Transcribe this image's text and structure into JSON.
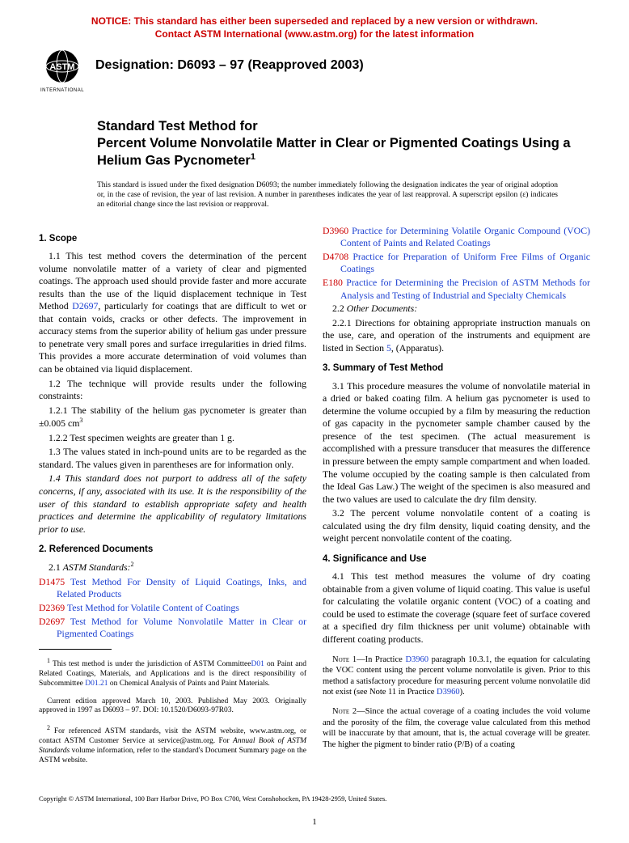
{
  "notice": {
    "line1": "NOTICE: This standard has either been superseded and replaced by a new version or withdrawn.",
    "line2": "Contact ASTM International (www.astm.org) for the latest information"
  },
  "logo_label": "INTERNATIONAL",
  "designation": "Designation: D6093 – 97 (Reapproved 2003)",
  "title": {
    "line1": "Standard Test Method for",
    "line2_a": "Percent Volume Nonvolatile Matter in Clear or Pigmented Coatings Using a Helium Gas Pycnometer",
    "sup": "1"
  },
  "issuance": "This standard is issued under the fixed designation D6093; the number immediately following the designation indicates the year of original adoption or, in the case of revision, the year of last revision. A number in parentheses indicates the year of last reapproval. A superscript epsilon (ε) indicates an editorial change since the last revision or reapproval.",
  "sec1_head": "1. Scope",
  "sec1_1a": "1.1 This test method covers the determination of the percent volume nonvolatile matter of a variety of clear and pigmented coatings. The approach used should provide faster and more accurate results than the use of the liquid displacement technique in Test Method ",
  "sec1_1_link": "D2697",
  "sec1_1b": ", particularly for coatings that are difficult to wet or that contain voids, cracks or other defects. The improvement in accuracy stems from the superior ability of helium gas under pressure to penetrate very small pores and surface irregularities in dried films. This provides a more accurate determination of void volumes than can be obtained via liquid displacement.",
  "sec1_2": "1.2 The technique will provide results under the following constraints:",
  "sec1_2_1": "1.2.1 The stability of the helium gas pycnometer is greater than ±0.005 cm",
  "sec1_2_1_sup": "3",
  "sec1_2_2": "1.2.2 Test specimen weights are greater than 1 g.",
  "sec1_3": "1.3 The values stated in inch-pound units are to be regarded as the standard. The values given in parentheses are for information only.",
  "sec1_4": "1.4 This standard does not purport to address all of the safety concerns, if any, associated with its use. It is the responsibility of the user of this standard to establish appropriate safety and health practices and determine the applicability of regulatory limitations prior to use.",
  "sec2_head": "2. Referenced Documents",
  "sec2_1": "2.1 ",
  "sec2_1_ital": "ASTM Standards:",
  "sec2_1_sup": "2",
  "refs_left": [
    {
      "code": "D1475",
      "text": " Test Method For Density of Liquid Coatings, Inks, and Related Products"
    },
    {
      "code": "D2369",
      "text": " Test Method for Volatile Content of Coatings"
    },
    {
      "code": "D2697",
      "text": " Test Method for Volume Nonvolatile Matter in Clear or Pigmented Coatings"
    }
  ],
  "refs_right": [
    {
      "code": "D3960",
      "text": " Practice for Determining Volatile Organic Compound (VOC) Content of Paints and Related Coatings"
    },
    {
      "code": "D4708",
      "text": " Practice for Preparation of Uniform Free Films of Organic Coatings"
    },
    {
      "code": "E180",
      "text": " Practice for Determining the Precision of ASTM Methods for Analysis and Testing of Industrial and Specialty Chemicals"
    }
  ],
  "sec2_2": "2.2 ",
  "sec2_2_ital": "Other Documents:",
  "sec2_2_1a": "2.2.1 Directions for obtaining appropriate instruction manuals on the use, care, and operation of the instruments and equipment are listed in Section ",
  "sec2_2_1_link": "5",
  "sec2_2_1b": ", (Apparatus).",
  "sec3_head": "3. Summary of Test Method",
  "sec3_1": "3.1 This procedure measures the volume of nonvolatile material in a dried or baked coating film. A helium gas pycnometer is used to determine the volume occupied by a film by measuring the reduction of gas capacity in the pycnometer sample chamber caused by the presence of the test specimen. (The actual measurement is accomplished with a pressure transducer that measures the difference in pressure between the empty sample compartment and when loaded. The volume occupied by the coating sample is then calculated from the Ideal Gas Law.) The weight of the specimen is also measured and the two values are used to calculate the dry film density.",
  "sec3_2": "3.2 The percent volume nonvolatile content of a coating is calculated using the dry film density, liquid coating density, and the weight percent nonvolatile content of the coating.",
  "sec4_head": "4. Significance and Use",
  "sec4_1": "4.1 This test method measures the volume of dry coating obtainable from a given volume of liquid coating. This value is useful for calculating the volatile organic content (VOC) of a coating and could be used to estimate the coverage (square feet of surface covered at a specified dry film thickness per unit volume) obtainable with different coating products.",
  "note1_label": "Note 1—",
  "note1_a": "In Practice ",
  "note1_link1": "D3960",
  "note1_b": " paragraph 10.3.1, the equation for calculating the VOC content using the percent volume nonvolatile is given. Prior to this method a satisfactory procedure for measuring percent volume nonvolatile did not exist (see Note 11 in Practice ",
  "note1_link2": "D3960",
  "note1_c": ").",
  "note2_label": "Note 2—",
  "note2": "Since the actual coverage of a coating includes the void volume and the porosity of the film, the coverage value calculated from this method will be inaccurate by that amount, that is, the actual coverage will be greater. The higher the pigment to binder ratio (P/B) of a coating",
  "fn1_a": " This test method is under the jurisdiction of ASTM Committee",
  "fn1_link1": "D01",
  "fn1_b": " on Paint and Related Coatings, Materials, and Applications and is the direct responsibility of Subcommittee ",
  "fn1_link2": "D01.21",
  "fn1_c": " on Chemical Analysis of Paints and Paint Materials.",
  "fn1_d": "Current edition approved March 10, 2003. Published May 2003. Originally approved in 1997 as D6093 – 97. DOI: 10.1520/D6093-97R03.",
  "fn2_a": " For referenced ASTM standards, visit the ASTM website, www.astm.org, or contact ASTM Customer Service at service@astm.org. For ",
  "fn2_ital": "Annual Book of ASTM Standards",
  "fn2_b": " volume information, refer to the standard's Document Summary page on the ASTM website.",
  "copyright": "Copyright © ASTM International, 100 Barr Harbor Drive, PO Box C700, West Conshohocken, PA 19428-2959, United States.",
  "pagenum": "1"
}
